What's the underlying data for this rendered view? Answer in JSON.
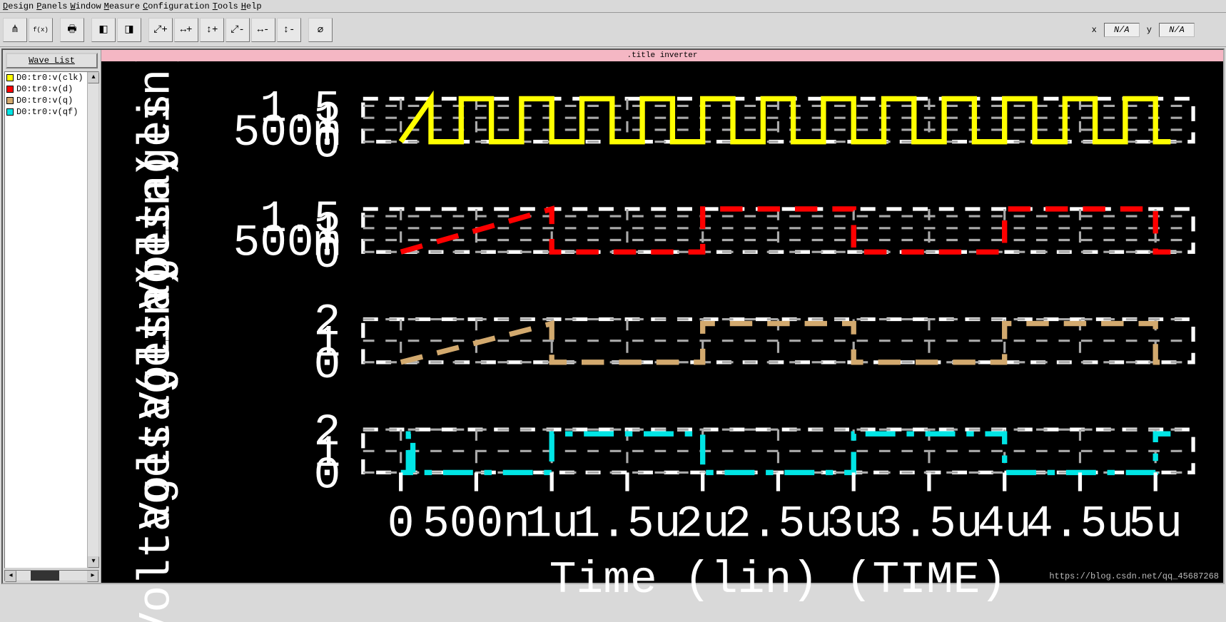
{
  "menu": [
    "Design",
    "Panels",
    "Window",
    "Measure",
    "Configuration",
    "Tools",
    "Help"
  ],
  "toolbar": {
    "buttons": [
      {
        "name": "tree-icon",
        "glyph": "⋔"
      },
      {
        "name": "func-icon",
        "glyph": "f(x)"
      },
      {
        "sep": true
      },
      {
        "name": "print-icon",
        "glyph": "🖶"
      },
      {
        "sep": true
      },
      {
        "name": "cursor1-icon",
        "glyph": "◧"
      },
      {
        "name": "cursor2-icon",
        "glyph": "◨"
      },
      {
        "sep": true
      },
      {
        "name": "zoom-xy-in-icon",
        "glyph": "⤢+"
      },
      {
        "name": "zoom-x-in-icon",
        "glyph": "↔+"
      },
      {
        "name": "zoom-y-in-icon",
        "glyph": "↕+"
      },
      {
        "name": "zoom-xy-out-icon",
        "glyph": "⤢-"
      },
      {
        "name": "zoom-x-out-icon",
        "glyph": "↔-"
      },
      {
        "name": "zoom-y-out-icon",
        "glyph": "↕-"
      },
      {
        "sep": true
      },
      {
        "name": "no-zoom-icon",
        "glyph": "⌀"
      }
    ]
  },
  "readout": {
    "x_label": "x",
    "x_value": "N/A",
    "y_label": "y",
    "y_value": "N/A"
  },
  "sidebar": {
    "wavelist_label": "Wave List",
    "items": [
      {
        "label": "D0:tr0:v(clk)",
        "color": "#ffff00"
      },
      {
        "label": "D0:tr0:v(d)",
        "color": "#ff0000"
      },
      {
        "label": "D0:tr0:v(q)",
        "color": "#d2a96e"
      },
      {
        "label": "D0:tr0:v(qf)",
        "color": "#00e5e5"
      }
    ]
  },
  "plot": {
    "title": ".title inverter",
    "xaxis": {
      "label": "Time (lin) (TIME)",
      "min": -0.25,
      "max": 5.25,
      "ticks": [
        {
          "v": 0,
          "l": "0"
        },
        {
          "v": 0.5,
          "l": "500n"
        },
        {
          "v": 1.0,
          "l": "1u"
        },
        {
          "v": 1.5,
          "l": "1.5u"
        },
        {
          "v": 2.0,
          "l": "2u"
        },
        {
          "v": 2.5,
          "l": "2.5u"
        },
        {
          "v": 3.0,
          "l": "3u"
        },
        {
          "v": 3.5,
          "l": "3.5u"
        },
        {
          "v": 4.0,
          "l": "4u"
        },
        {
          "v": 4.5,
          "l": "4.5u"
        },
        {
          "v": 5.0,
          "l": "5u"
        }
      ]
    },
    "panels": [
      {
        "ylabel": "Voltages (lin)",
        "color": "#ffff00",
        "style": "solid",
        "ymin": 0,
        "ymax": 1.8,
        "yticks": [
          {
            "v": 0,
            "l": "0"
          },
          {
            "v": 0.5,
            "l": "500m"
          },
          {
            "v": 1.0,
            "l": "1"
          },
          {
            "v": 1.5,
            "l": "1.5"
          }
        ],
        "period": 0.4,
        "duty": 0.5,
        "phase": 0,
        "high": 1.8,
        "low": 0,
        "clip_after": 5.1
      },
      {
        "ylabel": "Voltages (lin)",
        "color": "#ff0000",
        "style": "dashed",
        "ymin": 0,
        "ymax": 1.8,
        "yticks": [
          {
            "v": 0,
            "l": "0"
          },
          {
            "v": 0.5,
            "l": "500m"
          },
          {
            "v": 1.0,
            "l": "1"
          },
          {
            "v": 1.5,
            "l": "1.5"
          }
        ],
        "period": 2.0,
        "duty": 0.5,
        "phase": 0,
        "high": 1.8,
        "low": 0,
        "clip_after": 5.1
      },
      {
        "ylabel": "Voltages (lin)",
        "color": "#d2a96e",
        "style": "dashed",
        "ymin": 0,
        "ymax": 2.0,
        "yticks": [
          {
            "v": 0,
            "l": "0"
          },
          {
            "v": 1,
            "l": "1"
          },
          {
            "v": 2,
            "l": "2"
          }
        ],
        "period": 2.0,
        "duty": 0.5,
        "phase": 0,
        "high": 1.8,
        "low": 0,
        "clip_after": 5.1
      },
      {
        "ylabel": "Voltages (lin)",
        "color": "#00e5e5",
        "style": "dashdot",
        "ymin": 0,
        "ymax": 2.0,
        "yticks": [
          {
            "v": 0,
            "l": "0"
          },
          {
            "v": 1,
            "l": "1"
          },
          {
            "v": 2,
            "l": "2"
          }
        ],
        "period": 2.0,
        "duty": 0.5,
        "phase": 1.0,
        "high": 1.8,
        "low": 0,
        "clip_after": 5.1,
        "init_spike_at": 0.05
      }
    ],
    "grid_color": "#aaaaaa",
    "axis_color": "#ffffff",
    "background": "#000000",
    "watermark": "https://blog.csdn.net/qq_45687268"
  }
}
